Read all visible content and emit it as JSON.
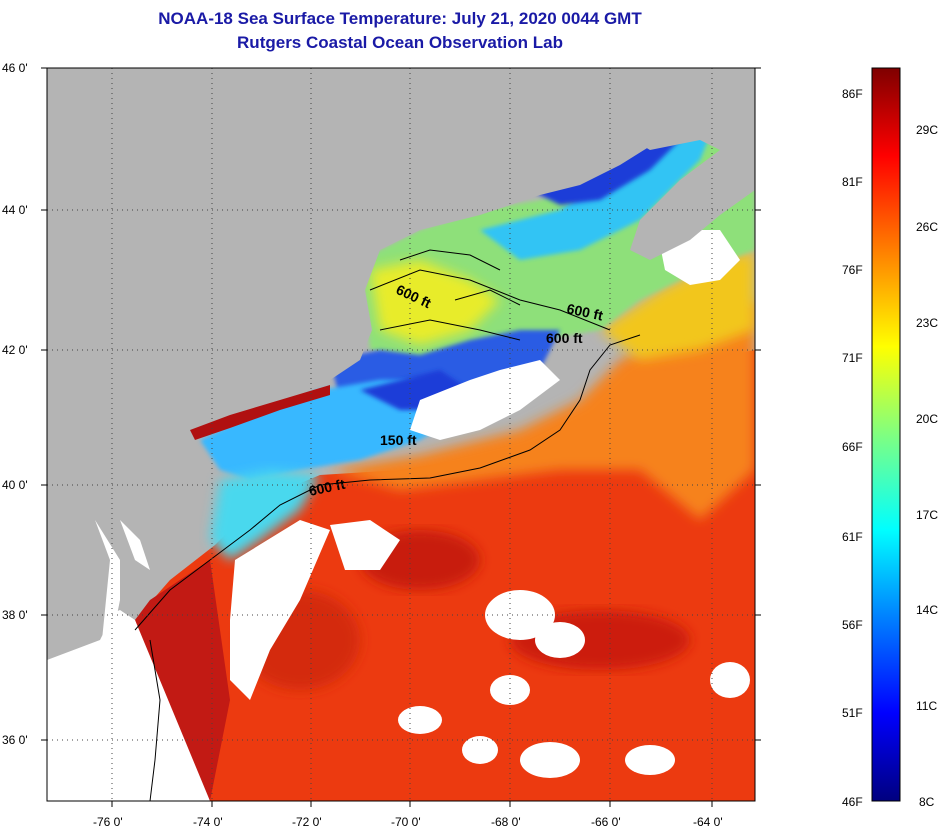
{
  "header": {
    "title_line1": "NOAA-18 Sea Surface Temperature:  July 21, 2020 0044 GMT",
    "title_line2": "Rutgers Coastal Ocean Observation Lab"
  },
  "axes": {
    "lat_labels": [
      "46 0'",
      "44 0'",
      "42 0'",
      "40 0'",
      "38 0'",
      "36 0'"
    ],
    "lon_labels": [
      "-76 0'",
      "-74 0'",
      "-72 0'",
      "-70 0'",
      "-68 0'",
      "-66 0'",
      "-64 0'"
    ]
  },
  "contour_labels": [
    "600 ft",
    "600 ft",
    "600 ft",
    "150 ft",
    "600 ft"
  ],
  "colorbar": {
    "fahrenheit": [
      "86F",
      "81F",
      "76F",
      "71F",
      "66F",
      "61F",
      "56F",
      "51F",
      "46F"
    ],
    "celsius": [
      "29C",
      "26C",
      "23C",
      "20C",
      "17C",
      "14C",
      "11C",
      "8C"
    ],
    "range_f": [
      46,
      88
    ],
    "colors": [
      "#00007f",
      "#0000ff",
      "#0080ff",
      "#00ffff",
      "#80ff80",
      "#ffff00",
      "#ff8000",
      "#ff0000",
      "#7f0000"
    ]
  },
  "palette": {
    "land": "#b4b4b4",
    "cloud": "#ffffff",
    "warm_ocean": "#ee3a12",
    "cool_ocean": "#38b8ff",
    "title_color": "#1a1aa6"
  }
}
